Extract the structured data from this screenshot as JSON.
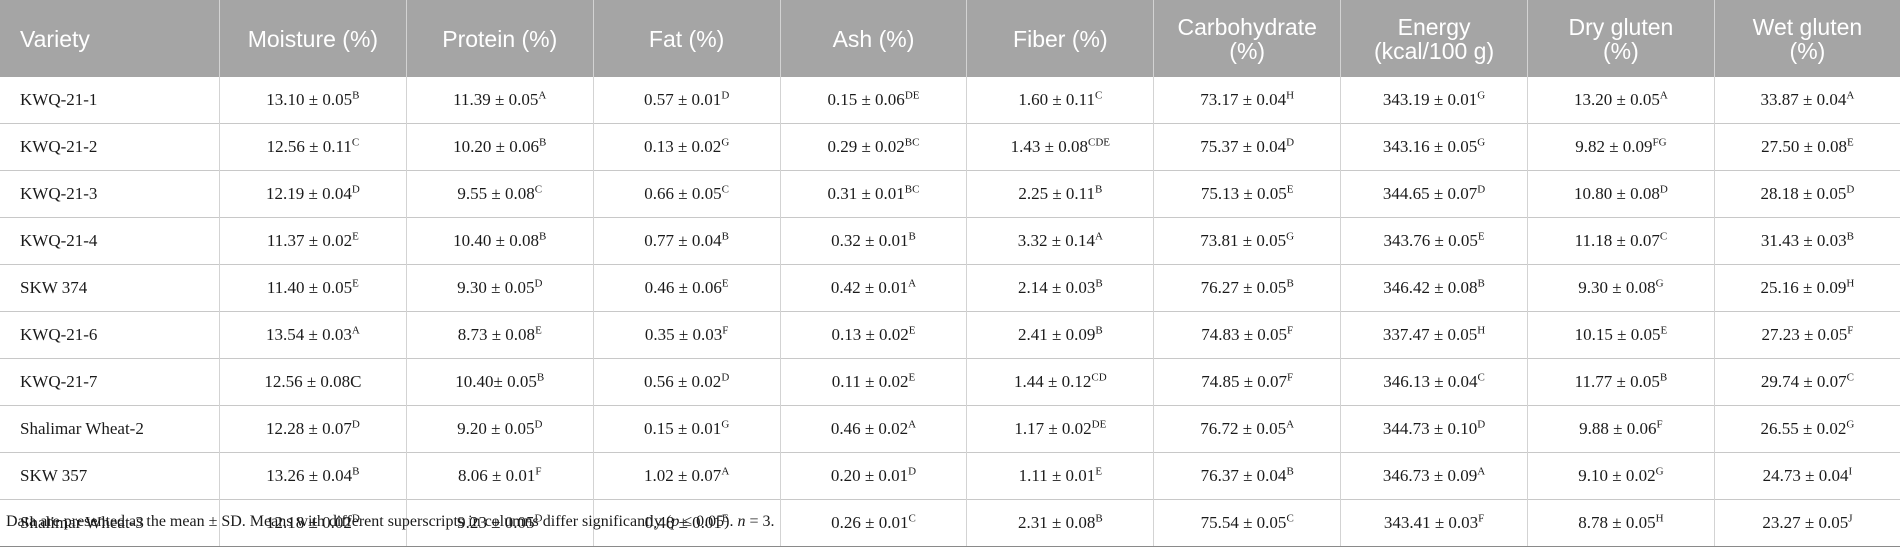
{
  "table": {
    "headers": [
      "Variety",
      "Moisture (%)",
      "Protein (%)",
      "Fat (%)",
      "Ash (%)",
      "Fiber (%)",
      "Carbohydrate\n(%)",
      "Energy\n(kcal/100 g)",
      "Dry gluten\n(%)",
      "Wet gluten\n(%)"
    ],
    "rows": [
      [
        "KWQ-21-1",
        [
          "13.10 ± 0.05",
          "B"
        ],
        [
          "11.39 ± 0.05",
          "A"
        ],
        [
          "0.57 ± 0.01",
          "D"
        ],
        [
          "0.15 ± 0.06",
          "DE"
        ],
        [
          "1.60 ± 0.11",
          "C"
        ],
        [
          "73.17 ± 0.04",
          "H"
        ],
        [
          "343.19 ± 0.01",
          "G"
        ],
        [
          "13.20 ± 0.05",
          "A"
        ],
        [
          "33.87 ± 0.04",
          "A"
        ]
      ],
      [
        "KWQ-21-2",
        [
          "12.56 ± 0.11",
          "C"
        ],
        [
          "10.20 ± 0.06",
          "B"
        ],
        [
          "0.13 ± 0.02",
          "G"
        ],
        [
          "0.29 ± 0.02",
          "BC"
        ],
        [
          "1.43 ± 0.08",
          "CDE"
        ],
        [
          "75.37 ± 0.04",
          "D"
        ],
        [
          "343.16 ± 0.05",
          "G"
        ],
        [
          "9.82 ± 0.09",
          "FG"
        ],
        [
          "27.50 ± 0.08",
          "E"
        ]
      ],
      [
        "KWQ-21-3",
        [
          "12.19 ± 0.04",
          "D"
        ],
        [
          "9.55 ± 0.08",
          "C"
        ],
        [
          "0.66 ± 0.05",
          "C"
        ],
        [
          "0.31 ± 0.01",
          "BC"
        ],
        [
          "2.25 ± 0.11",
          "B"
        ],
        [
          "75.13 ± 0.05",
          "E"
        ],
        [
          "344.65 ± 0.07",
          "D"
        ],
        [
          "10.80 ± 0.08",
          "D"
        ],
        [
          "28.18 ± 0.05",
          "D"
        ]
      ],
      [
        "KWQ-21-4",
        [
          "11.37 ± 0.02",
          "E"
        ],
        [
          "10.40 ± 0.08",
          "B"
        ],
        [
          "0.77 ± 0.04",
          "B"
        ],
        [
          "0.32 ± 0.01",
          "B"
        ],
        [
          "3.32 ± 0.14",
          "A"
        ],
        [
          "73.81 ± 0.05",
          "G"
        ],
        [
          "343.76 ± 0.05",
          "E"
        ],
        [
          "11.18 ± 0.07",
          "C"
        ],
        [
          "31.43 ± 0.03",
          "B"
        ]
      ],
      [
        "SKW 374",
        [
          "11.40 ± 0.05",
          "E"
        ],
        [
          "9.30 ± 0.05",
          "D"
        ],
        [
          "0.46 ± 0.06",
          "E"
        ],
        [
          "0.42 ± 0.01",
          "A"
        ],
        [
          "2.14 ± 0.03",
          "B"
        ],
        [
          "76.27 ± 0.05",
          "B"
        ],
        [
          "346.42 ± 0.08",
          "B"
        ],
        [
          "9.30 ± 0.08",
          "G"
        ],
        [
          "25.16 ± 0.09",
          "H"
        ]
      ],
      [
        "KWQ-21-6",
        [
          "13.54 ± 0.03",
          "A"
        ],
        [
          "8.73 ± 0.08",
          "E"
        ],
        [
          "0.35 ± 0.03",
          "F"
        ],
        [
          "0.13 ± 0.02",
          "E"
        ],
        [
          "2.41 ± 0.09",
          "B"
        ],
        [
          "74.83 ± 0.05",
          "F"
        ],
        [
          "337.47 ± 0.05",
          "H"
        ],
        [
          "10.15 ± 0.05",
          "E"
        ],
        [
          "27.23 ± 0.05",
          "F"
        ]
      ],
      [
        "KWQ-21-7",
        [
          "12.56 ± 0.08C",
          ""
        ],
        [
          "10.40± 0.05",
          "B"
        ],
        [
          "0.56 ± 0.02",
          "D"
        ],
        [
          "0.11 ± 0.02",
          "E"
        ],
        [
          "1.44 ± 0.12",
          "CD"
        ],
        [
          "74.85 ± 0.07",
          "F"
        ],
        [
          "346.13 ± 0.04",
          "C"
        ],
        [
          "11.77 ± 0.05",
          "B"
        ],
        [
          "29.74 ± 0.07",
          "C"
        ]
      ],
      [
        "Shalimar Wheat-2",
        [
          "12.28 ± 0.07",
          "D"
        ],
        [
          "9.20 ± 0.05",
          "D"
        ],
        [
          "0.15 ± 0.01",
          "G"
        ],
        [
          "0.46 ± 0.02",
          "A"
        ],
        [
          "1.17 ± 0.02",
          "DE"
        ],
        [
          "76.72 ± 0.05",
          "A"
        ],
        [
          "344.73 ± 0.10",
          "D"
        ],
        [
          "9.88 ± 0.06",
          "F"
        ],
        [
          "26.55 ± 0.02",
          "G"
        ]
      ],
      [
        "SKW 357",
        [
          "13.26 ± 0.04",
          "B"
        ],
        [
          "8.06 ± 0.01",
          "F"
        ],
        [
          "1.02 ± 0.07",
          "A"
        ],
        [
          "0.20 ± 0.01",
          "D"
        ],
        [
          "1.11 ± 0.01",
          "E"
        ],
        [
          "76.37 ± 0.04",
          "B"
        ],
        [
          "346.73 ± 0.09",
          "A"
        ],
        [
          "9.10 ± 0.02",
          "G"
        ],
        [
          "24.73 ± 0.04",
          "I"
        ]
      ],
      [
        "Shalimar Wheat-3",
        [
          "12.18 ± 0.02",
          "D"
        ],
        [
          "9.23 ± 0.05",
          "D"
        ],
        [
          "0.48 ± 0.01",
          "E"
        ],
        [
          "0.26 ± 0.01",
          "C"
        ],
        [
          "2.31 ± 0.08",
          "B"
        ],
        [
          "75.54 ± 0.05",
          "C"
        ],
        [
          "343.41 ± 0.03",
          "F"
        ],
        [
          "8.78 ± 0.05",
          "H"
        ],
        [
          "23.27 ± 0.05",
          "J"
        ]
      ]
    ]
  },
  "footnote": {
    "part1": "Data are presented as the mean ± SD. Means with different superscripts in columns differ significantly (",
    "p": "p",
    "part2": " ≤ 0.05). ",
    "n": "n",
    "part3": " = 3."
  },
  "colors": {
    "header_bg": "#a5a5a5",
    "header_text": "#ffffff",
    "row_rule": "#c8c8c8"
  }
}
